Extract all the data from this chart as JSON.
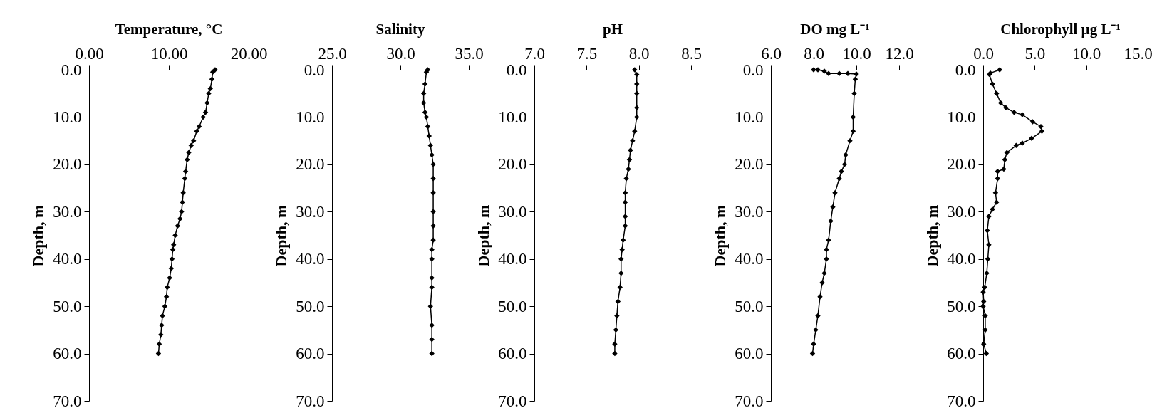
{
  "chart_data": [
    {
      "type": "line",
      "title": "Temperature, °C",
      "ylabel": "Depth, m",
      "marker": "diamond",
      "xlim": [
        0,
        20
      ],
      "xticks": [
        {
          "value": 0,
          "label": "0.00"
        },
        {
          "value": 10,
          "label": "10.00"
        },
        {
          "value": 20,
          "label": "20.00"
        }
      ],
      "ylim": [
        70,
        0
      ],
      "yticks": [
        {
          "value": 0,
          "label": "0.0"
        },
        {
          "value": 10,
          "label": "10.0"
        },
        {
          "value": 20,
          "label": "20.0"
        },
        {
          "value": 30,
          "label": "30.0"
        },
        {
          "value": 40,
          "label": "40.0"
        },
        {
          "value": 50,
          "label": "50.0"
        },
        {
          "value": 60,
          "label": "60.0"
        },
        {
          "value": 70,
          "label": "70.0"
        }
      ],
      "series": [
        {
          "color": "#000000",
          "x": [
            15.8,
            15.5,
            15.4,
            15.2,
            15.0,
            14.8,
            14.6,
            14.3,
            13.8,
            13.5,
            13.1,
            12.8,
            12.5,
            12.3,
            12.1,
            12.0,
            11.8,
            11.7,
            11.6,
            11.4,
            11.1,
            10.8,
            10.6,
            10.5,
            10.4,
            10.3,
            10.1,
            9.8,
            9.7,
            9.5,
            9.2,
            9.1,
            9.0,
            8.8,
            8.7
          ],
          "values": [
            0,
            0.5,
            2,
            4,
            5,
            7,
            9,
            10,
            12,
            13,
            15,
            16,
            17.5,
            19,
            21.5,
            23,
            26,
            28,
            30,
            31.5,
            33,
            35,
            37,
            38,
            40,
            42,
            44,
            46,
            48,
            50,
            52,
            54,
            56,
            58,
            60
          ]
        }
      ]
    },
    {
      "type": "line",
      "title": "Salinity",
      "ylabel": "Depth, m",
      "marker": "diamond",
      "xlim": [
        25,
        35
      ],
      "xticks": [
        {
          "value": 25,
          "label": "25.0"
        },
        {
          "value": 30,
          "label": "30.0"
        },
        {
          "value": 35,
          "label": "35.0"
        }
      ],
      "ylim": [
        70,
        0
      ],
      "yticks": [
        {
          "value": 0,
          "label": "0.0"
        },
        {
          "value": 10,
          "label": "10.0"
        },
        {
          "value": 20,
          "label": "20.0"
        },
        {
          "value": 30,
          "label": "30.0"
        },
        {
          "value": 40,
          "label": "40.0"
        },
        {
          "value": 50,
          "label": "50.0"
        },
        {
          "value": 60,
          "label": "60.0"
        },
        {
          "value": 70,
          "label": "70.0"
        }
      ],
      "series": [
        {
          "color": "#000000",
          "x": [
            32.0,
            31.9,
            31.8,
            31.7,
            31.7,
            31.8,
            31.9,
            32.0,
            32.1,
            32.2,
            32.3,
            32.4,
            32.4,
            32.4,
            32.4,
            32.4,
            32.4,
            32.3,
            32.3,
            32.3,
            32.3,
            32.2,
            32.3,
            32.3,
            32.3
          ],
          "values": [
            0,
            0.5,
            3,
            5,
            7,
            9,
            10,
            12,
            14,
            16,
            18,
            20,
            23,
            26,
            30,
            33,
            36,
            38,
            40,
            44,
            46,
            50,
            54,
            57,
            60
          ]
        }
      ]
    },
    {
      "type": "line",
      "title": "pH",
      "ylabel": "Depth, m",
      "marker": "diamond",
      "xlim": [
        7,
        8.5
      ],
      "xticks": [
        {
          "value": 7,
          "label": "7.0"
        },
        {
          "value": 7.5,
          "label": "7.5"
        },
        {
          "value": 8,
          "label": "8.0"
        },
        {
          "value": 8.5,
          "label": "8.5"
        }
      ],
      "ylim": [
        70,
        0
      ],
      "yticks": [
        {
          "value": 0,
          "label": "0.0"
        },
        {
          "value": 10,
          "label": "10.0"
        },
        {
          "value": 20,
          "label": "20.0"
        },
        {
          "value": 30,
          "label": "30.0"
        },
        {
          "value": 40,
          "label": "40.0"
        },
        {
          "value": 50,
          "label": "50.0"
        },
        {
          "value": 60,
          "label": "60.0"
        },
        {
          "value": 70,
          "label": "70.0"
        }
      ],
      "series": [
        {
          "color": "#000000",
          "x": [
            7.96,
            7.98,
            7.98,
            7.98,
            7.98,
            7.98,
            7.96,
            7.94,
            7.92,
            7.91,
            7.9,
            7.88,
            7.87,
            7.87,
            7.87,
            7.87,
            7.85,
            7.84,
            7.83,
            7.83,
            7.82,
            7.8,
            7.79,
            7.78,
            7.77,
            7.77
          ],
          "values": [
            0,
            1,
            3,
            5,
            8,
            10,
            13,
            15,
            17,
            19,
            21,
            23,
            26,
            28,
            31,
            33,
            36,
            38,
            40,
            43,
            46,
            49,
            52,
            55,
            58,
            60
          ]
        }
      ]
    },
    {
      "type": "line",
      "title": "DO mg L⁻¹",
      "ylabel": "Depth, m",
      "marker": "diamond",
      "xlim": [
        6,
        12
      ],
      "xticks": [
        {
          "value": 6,
          "label": "6.0"
        },
        {
          "value": 8,
          "label": "8.0"
        },
        {
          "value": 10,
          "label": "10.0"
        },
        {
          "value": 12,
          "label": "12.0"
        }
      ],
      "ylim": [
        70,
        0
      ],
      "yticks": [
        {
          "value": 0,
          "label": "0.0"
        },
        {
          "value": 10,
          "label": "10.0"
        },
        {
          "value": 20,
          "label": "20.0"
        },
        {
          "value": 30,
          "label": "30.0"
        },
        {
          "value": 40,
          "label": "40.0"
        },
        {
          "value": 50,
          "label": "50.0"
        },
        {
          "value": 60,
          "label": "60.0"
        },
        {
          "value": 70,
          "label": "70.0"
        }
      ],
      "series": [
        {
          "color": "#000000",
          "x": [
            8.0,
            8.2,
            8.5,
            8.7,
            9.2,
            9.6,
            10.0,
            9.95,
            9.9,
            9.85,
            9.85,
            9.7,
            9.5,
            9.45,
            9.3,
            9.2,
            9.0,
            8.9,
            8.8,
            8.7,
            8.6,
            8.6,
            8.5,
            8.4,
            8.3,
            8.2,
            8.1,
            8.0,
            7.95
          ],
          "values": [
            0,
            0,
            0.3,
            0.8,
            0.8,
            0.8,
            0.9,
            2,
            5,
            10,
            13,
            15,
            18,
            20,
            21.5,
            23,
            26,
            29,
            32,
            36,
            38,
            40,
            43,
            45,
            48,
            52,
            55,
            58,
            60
          ]
        }
      ]
    },
    {
      "type": "line",
      "title": "Chlorophyll  µg L⁻¹",
      "ylabel": "Depth, m",
      "marker": "diamond",
      "xlim": [
        0,
        15
      ],
      "xticks": [
        {
          "value": 0,
          "label": "0.0"
        },
        {
          "value": 5,
          "label": "5.0"
        },
        {
          "value": 10,
          "label": "10.0"
        },
        {
          "value": 15,
          "label": "15.0"
        }
      ],
      "ylim": [
        70,
        0
      ],
      "yticks": [
        {
          "value": 0,
          "label": "0.0"
        },
        {
          "value": 10,
          "label": "10.0"
        },
        {
          "value": 20,
          "label": "20.0"
        },
        {
          "value": 30,
          "label": "30.0"
        },
        {
          "value": 40,
          "label": "40.0"
        },
        {
          "value": 50,
          "label": "50.0"
        },
        {
          "value": 60,
          "label": "60.0"
        },
        {
          "value": 70,
          "label": "70.0"
        }
      ],
      "series": [
        {
          "color": "#000000",
          "x": [
            1.6,
            0.7,
            0.6,
            0.9,
            1.3,
            1.7,
            2.2,
            3.0,
            3.8,
            4.8,
            5.6,
            5.7,
            4.7,
            3.8,
            3.2,
            2.3,
            2.1,
            2.0,
            1.4,
            1.4,
            1.2,
            1.3,
            0.9,
            0.55,
            0.4,
            0.55,
            0.45,
            0.35,
            0.15,
            0,
            0.05,
            0,
            0.2,
            0.2,
            0.05,
            0.3
          ],
          "values": [
            0,
            0.7,
            1,
            3,
            5,
            7,
            8,
            9,
            9.5,
            11,
            12,
            13,
            14.5,
            15.5,
            16,
            17.5,
            19,
            21,
            21.5,
            23,
            26,
            28,
            29.5,
            31,
            34,
            37,
            40,
            43,
            46,
            47,
            49,
            50,
            52,
            55,
            58,
            60
          ]
        }
      ]
    }
  ]
}
